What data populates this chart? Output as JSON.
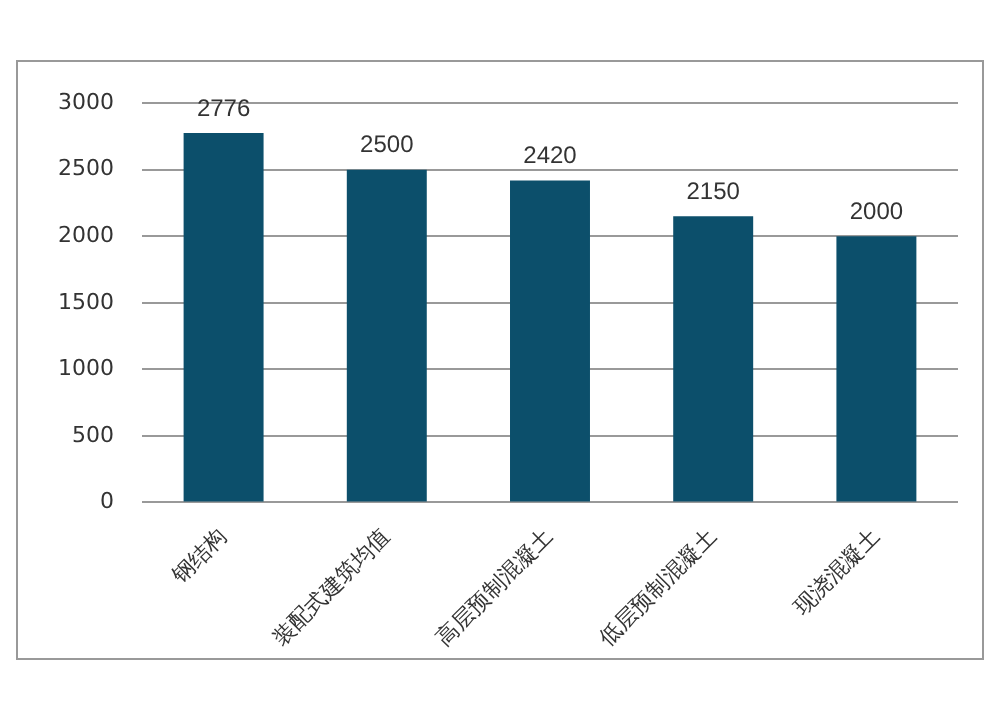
{
  "chart_data": {
    "type": "bar",
    "categories": [
      "钢结构",
      "装配式建筑均值",
      "高层预制混凝土",
      "低层预制混凝土",
      "现浇混凝土"
    ],
    "values": [
      2776,
      2500,
      2420,
      2150,
      2000
    ],
    "color": "#0c4f6b",
    "ylim": [
      0,
      3000
    ],
    "yticks": [
      0,
      500,
      1000,
      1500,
      2000,
      2500,
      3000
    ],
    "grid": "y",
    "data_labels": true
  }
}
